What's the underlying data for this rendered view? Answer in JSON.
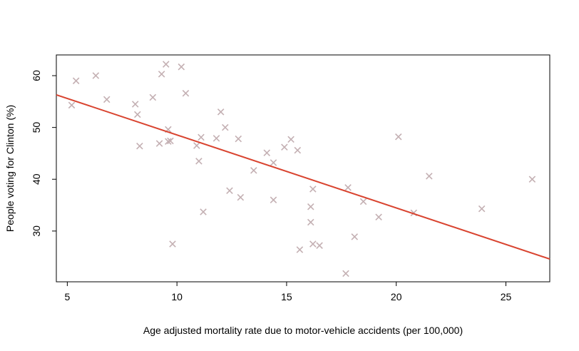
{
  "chart_data": {
    "type": "scatter",
    "xlabel": "Age adjusted mortality rate due to motor-vehicle accidents (per 100,000)",
    "ylabel": "People voting for Clinton (%)",
    "xlim": [
      4.5,
      27.0
    ],
    "ylim": [
      20.2,
      64.0
    ],
    "x_ticks": [
      5,
      10,
      15,
      20,
      25
    ],
    "y_ticks": [
      30,
      40,
      50,
      60
    ],
    "grid": false,
    "marker": "x",
    "marker_color": "#c4b0b3",
    "fit_line_color": "#d9432f",
    "fit_line": {
      "x1": 4.5,
      "y1": 56.3,
      "x2": 27.0,
      "y2": 24.6
    },
    "points": [
      {
        "x": 5.2,
        "y": 54.3
      },
      {
        "x": 5.4,
        "y": 59.0
      },
      {
        "x": 6.3,
        "y": 60.0
      },
      {
        "x": 6.8,
        "y": 55.4
      },
      {
        "x": 8.1,
        "y": 54.5
      },
      {
        "x": 8.2,
        "y": 52.5
      },
      {
        "x": 8.3,
        "y": 46.4
      },
      {
        "x": 8.9,
        "y": 55.8
      },
      {
        "x": 9.2,
        "y": 46.9
      },
      {
        "x": 9.3,
        "y": 60.3
      },
      {
        "x": 9.5,
        "y": 62.2
      },
      {
        "x": 9.6,
        "y": 49.6
      },
      {
        "x": 9.6,
        "y": 47.3
      },
      {
        "x": 9.7,
        "y": 47.4
      },
      {
        "x": 9.8,
        "y": 27.5
      },
      {
        "x": 10.2,
        "y": 61.7
      },
      {
        "x": 10.4,
        "y": 56.6
      },
      {
        "x": 10.9,
        "y": 46.5
      },
      {
        "x": 11.0,
        "y": 43.5
      },
      {
        "x": 11.1,
        "y": 48.1
      },
      {
        "x": 11.2,
        "y": 33.7
      },
      {
        "x": 11.8,
        "y": 47.9
      },
      {
        "x": 12.0,
        "y": 53.0
      },
      {
        "x": 12.2,
        "y": 50.0
      },
      {
        "x": 12.4,
        "y": 37.8
      },
      {
        "x": 12.8,
        "y": 47.8
      },
      {
        "x": 12.9,
        "y": 36.5
      },
      {
        "x": 13.5,
        "y": 41.7
      },
      {
        "x": 14.1,
        "y": 45.1
      },
      {
        "x": 14.4,
        "y": 43.2
      },
      {
        "x": 14.4,
        "y": 36.0
      },
      {
        "x": 14.9,
        "y": 46.2
      },
      {
        "x": 15.2,
        "y": 47.7
      },
      {
        "x": 15.5,
        "y": 45.6
      },
      {
        "x": 15.6,
        "y": 26.4
      },
      {
        "x": 16.1,
        "y": 34.7
      },
      {
        "x": 16.1,
        "y": 31.7
      },
      {
        "x": 16.2,
        "y": 38.1
      },
      {
        "x": 16.2,
        "y": 27.5
      },
      {
        "x": 16.5,
        "y": 27.2
      },
      {
        "x": 17.7,
        "y": 21.8
      },
      {
        "x": 17.8,
        "y": 38.4
      },
      {
        "x": 18.1,
        "y": 28.9
      },
      {
        "x": 18.5,
        "y": 35.7
      },
      {
        "x": 19.2,
        "y": 32.7
      },
      {
        "x": 20.1,
        "y": 48.2
      },
      {
        "x": 20.8,
        "y": 33.5
      },
      {
        "x": 21.5,
        "y": 40.6
      },
      {
        "x": 23.9,
        "y": 34.3
      },
      {
        "x": 26.2,
        "y": 40.0
      }
    ]
  }
}
